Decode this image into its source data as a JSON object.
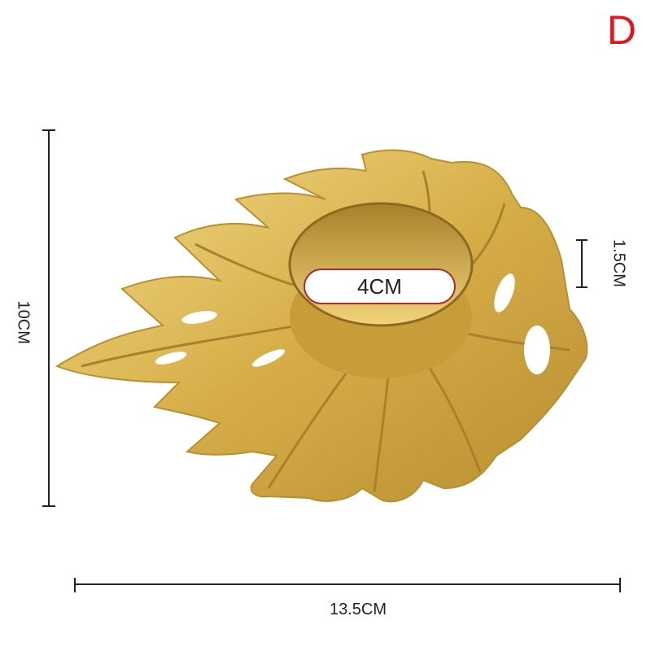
{
  "variant_letter": "D",
  "dimensions": {
    "height": "10CM",
    "width": "13.5CM",
    "depth": "1.5CM",
    "diameter": "4CM"
  },
  "colors": {
    "gold": "#d9b24a",
    "gold_dark": "#a8812a",
    "letter": "#e8141c"
  },
  "product": "gold monstera leaf tealight candle holder"
}
